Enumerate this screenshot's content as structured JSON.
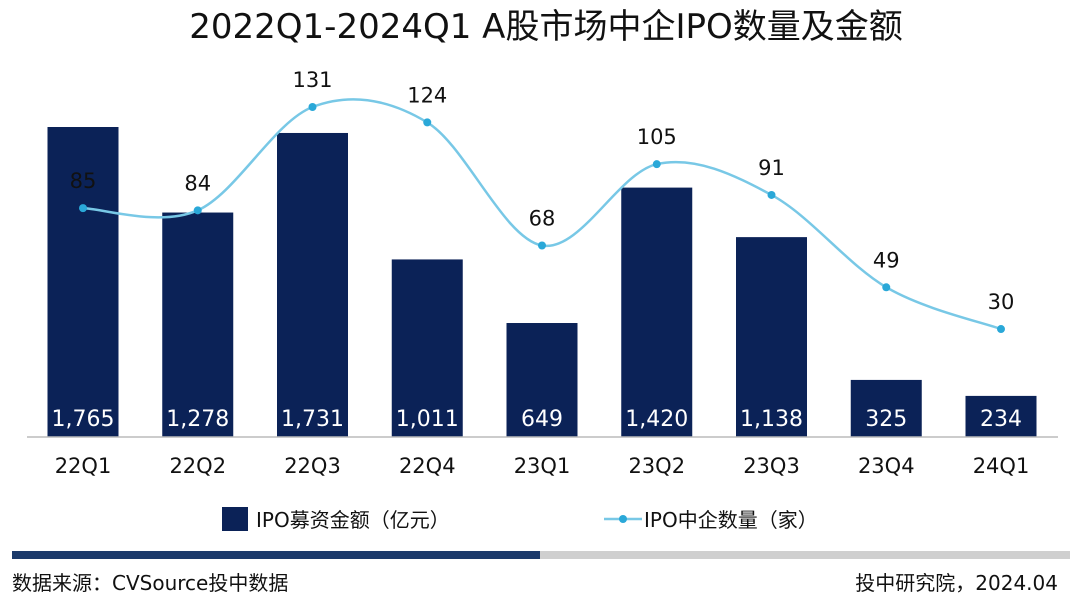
{
  "colors": {
    "bar": "#0b2257",
    "line": "#78c8e6",
    "axis": "#bbbbbb",
    "footer_dark": "#1c3a6b",
    "footer_light": "#cfcfcf"
  },
  "chart_data": {
    "type": "bar+line",
    "title": "2022Q1-2024Q1  A股市场中企IPO数量及金额",
    "categories": [
      "22Q1",
      "22Q2",
      "22Q3",
      "22Q4",
      "23Q1",
      "23Q2",
      "23Q3",
      "23Q4",
      "24Q1"
    ],
    "series": [
      {
        "name": "IPO募资金额（亿元）",
        "type": "bar",
        "values": [
          1765,
          1278,
          1731,
          1011,
          649,
          1420,
          1138,
          325,
          234
        ],
        "labels": [
          "1,765",
          "1,278",
          "1,731",
          "1,011",
          "649",
          "1,420",
          "1,138",
          "325",
          "234"
        ]
      },
      {
        "name": "IPO中企数量（家）",
        "type": "line",
        "smooth": true,
        "values": [
          85,
          84,
          131,
          124,
          68,
          105,
          91,
          49,
          30
        ],
        "labels": [
          "85",
          "84",
          "131",
          "124",
          "68",
          "105",
          "91",
          "49",
          "30"
        ]
      }
    ],
    "bar_axis_range": [
      0,
      1765
    ],
    "line_axis_range": [
      0,
      131
    ],
    "legend_position": "bottom"
  },
  "footer": {
    "source": "数据来源：CVSource投中数据",
    "credit": "投中研究院，2024.04"
  }
}
